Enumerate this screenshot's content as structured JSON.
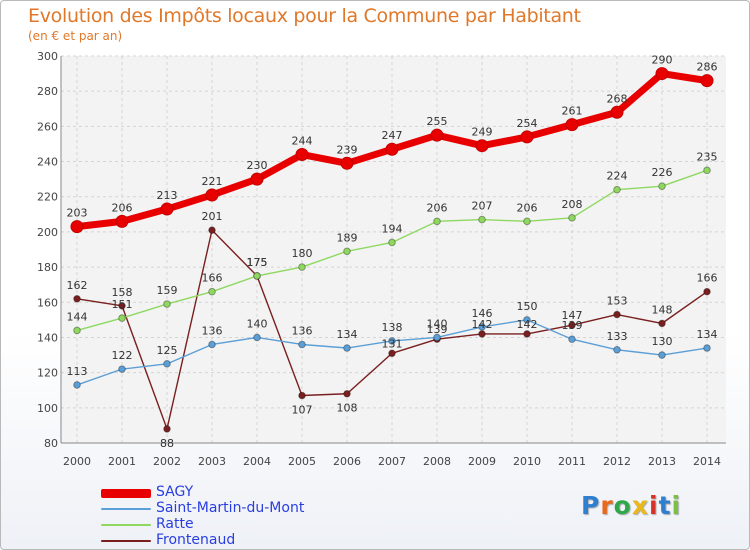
{
  "title": "Evolution des Impôts locaux pour la Commune par Habitant",
  "subtitle": "(en € et par an)",
  "chart_data": {
    "type": "line",
    "title": "Evolution des Impôts locaux pour la Commune par Habitant",
    "ylabel": "(en € et par an)",
    "xlabel": "",
    "ylim": [
      80,
      300
    ],
    "yticks": [
      80,
      100,
      120,
      140,
      160,
      180,
      200,
      220,
      240,
      260,
      280,
      300
    ],
    "grid": true,
    "legend": "bottom-left",
    "x": [
      "2000",
      "2001",
      "2002",
      "2003",
      "2004",
      "2005",
      "2006",
      "2007",
      "2008",
      "2009",
      "2010",
      "2011",
      "2012",
      "2013",
      "2014"
    ],
    "series": [
      {
        "name": "SAGY",
        "color": "#e80000",
        "values": [
          203,
          206,
          213,
          221,
          230,
          244,
          239,
          247,
          255,
          249,
          254,
          261,
          268,
          290,
          286
        ]
      },
      {
        "name": "Saint-Martin-du-Mont",
        "color": "#5b9fd6",
        "values": [
          113,
          122,
          125,
          136,
          140,
          136,
          134,
          138,
          140,
          146,
          150,
          139,
          133,
          130,
          134
        ]
      },
      {
        "name": "Ratte",
        "color": "#8fd860",
        "values": [
          144,
          151,
          159,
          166,
          175,
          180,
          189,
          194,
          206,
          207,
          206,
          208,
          224,
          226,
          235
        ]
      },
      {
        "name": "Frontenaud",
        "color": "#7a1f1f",
        "values": [
          162,
          158,
          88,
          201,
          175,
          107,
          108,
          131,
          139,
          142,
          142,
          147,
          153,
          148,
          166
        ]
      }
    ]
  },
  "legend_labels": [
    "SAGY",
    "Saint-Martin-du-Mont",
    "Ratte",
    "Frontenaud"
  ],
  "logo": {
    "text": "Proxiti",
    "letters": [
      "P",
      "r",
      "o",
      "x",
      "i",
      "t",
      "i"
    ]
  }
}
